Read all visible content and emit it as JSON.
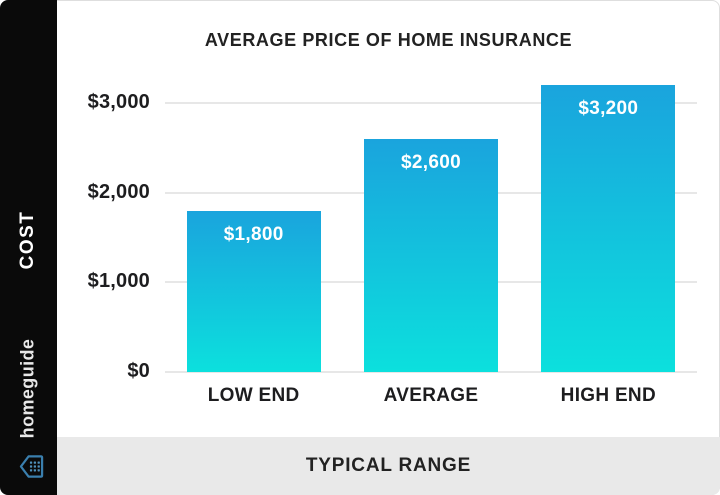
{
  "sidebar": {
    "cost_label": "COST",
    "brand": "homeguide",
    "brand_icon": "homeguide-house-icon",
    "background": "#0a0a0a",
    "icon_color": "#3a7fae"
  },
  "footer": {
    "label": "TYPICAL RANGE",
    "background": "#e9e9e9"
  },
  "chart_data": {
    "type": "bar",
    "title": "AVERAGE PRICE OF HOME INSURANCE",
    "categories": [
      "LOW END",
      "AVERAGE",
      "HIGH END"
    ],
    "values": [
      1800,
      2600,
      3200
    ],
    "value_labels": [
      "$1,800",
      "$2,600",
      "$3,200"
    ],
    "ylabel": "COST",
    "xlabel": "TYPICAL RANGE",
    "ylim": [
      0,
      3200
    ],
    "grid": true,
    "legend": false,
    "y_ticks": [
      {
        "value": 3000,
        "label": "$3,000"
      },
      {
        "value": 2000,
        "label": "$2,000"
      },
      {
        "value": 1000,
        "label": "$1,000"
      },
      {
        "value": 0,
        "label": "$0"
      }
    ],
    "bar_gradient_top": "#1aa4dd",
    "bar_gradient_bottom": "#0ce0dd",
    "gridline_color": "#e7e7e7",
    "text_color": "#1d1d1f",
    "value_text_color": "#ffffff"
  }
}
